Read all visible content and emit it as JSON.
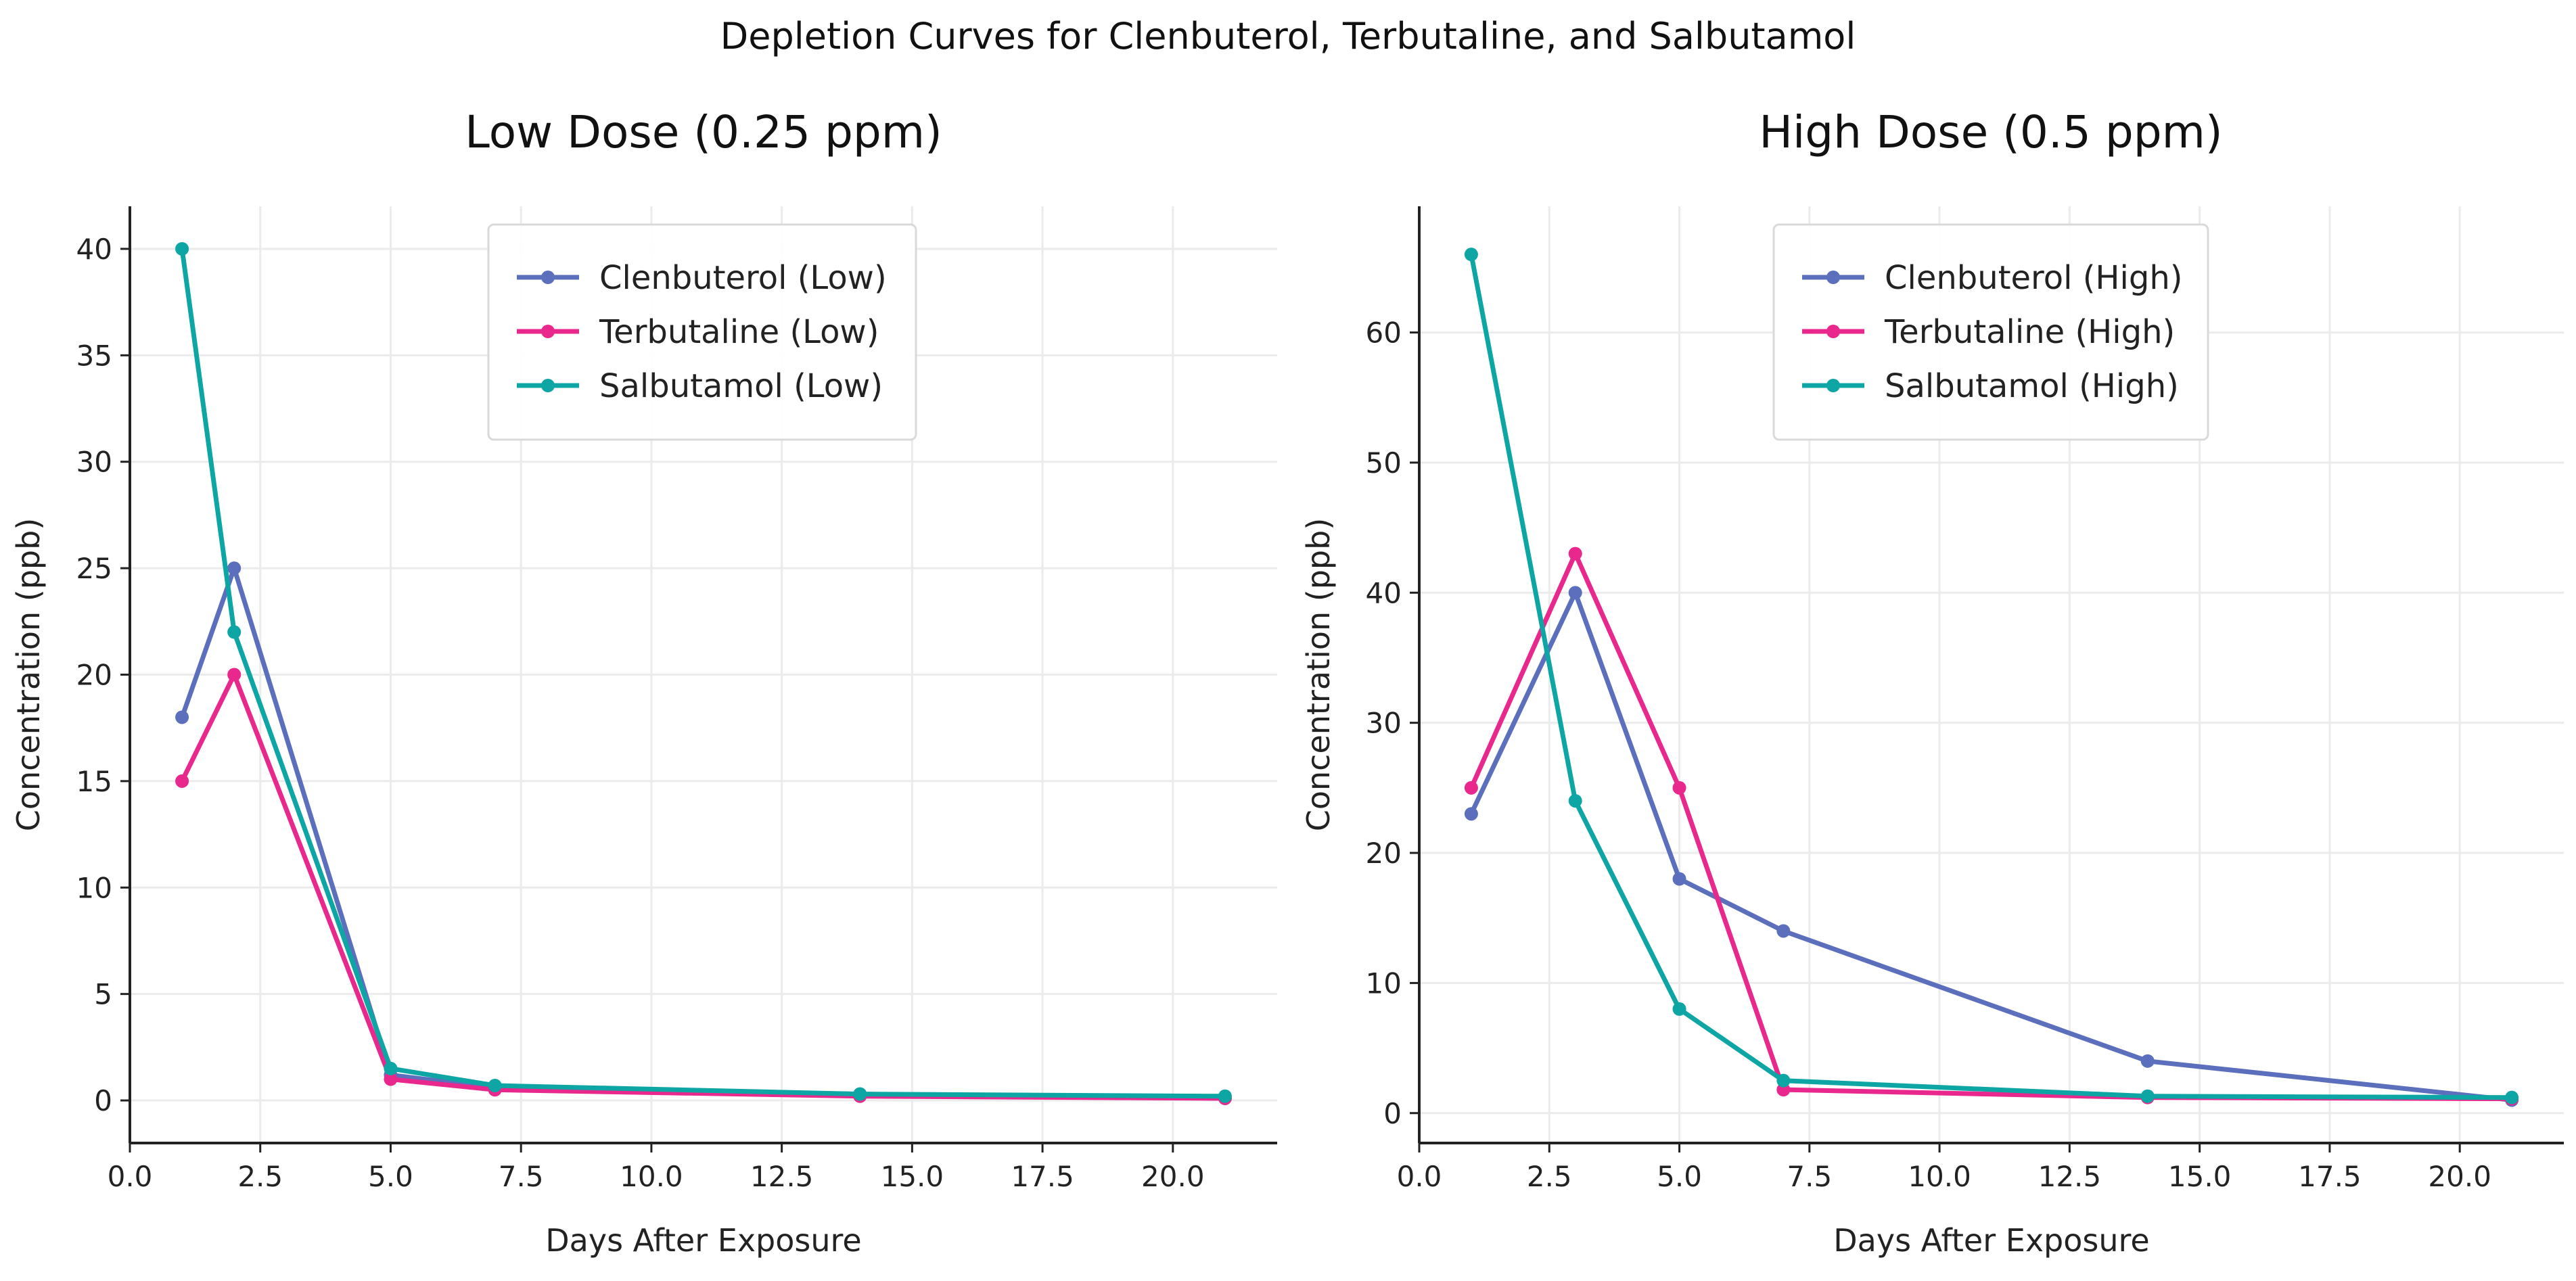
{
  "figure": {
    "title": "Depletion Curves for Clenbuterol, Terbutaline, and Salbutamol"
  },
  "chart_data": [
    {
      "type": "line",
      "title": "Low Dose (0.25 ppm)",
      "xlabel": "Days After Exposure",
      "ylabel": "Concentration (ppb)",
      "xlim": [
        0,
        22
      ],
      "ylim": [
        -2,
        42
      ],
      "xticks": [
        0.0,
        2.5,
        5.0,
        7.5,
        10.0,
        12.5,
        15.0,
        17.5,
        20.0
      ],
      "yticks": [
        0,
        5,
        10,
        15,
        20,
        25,
        30,
        35,
        40
      ],
      "xtick_labels": [
        "0.0",
        "2.5",
        "5.0",
        "7.5",
        "10.0",
        "12.5",
        "15.0",
        "17.5",
        "20.0"
      ],
      "ytick_labels": [
        "0",
        "5",
        "10",
        "15",
        "20",
        "25",
        "30",
        "35",
        "40"
      ],
      "grid": true,
      "legend_position": "top-center",
      "x": [
        1,
        2,
        5,
        7,
        14,
        21
      ],
      "series": [
        {
          "name": "Clenbuterol (Low)",
          "color": "#5b6fbd",
          "values": [
            18,
            25,
            1.2,
            0.6,
            0.3,
            0.1
          ]
        },
        {
          "name": "Terbutaline (Low)",
          "color": "#e8288c",
          "values": [
            15,
            20,
            1.0,
            0.5,
            0.2,
            0.1
          ]
        },
        {
          "name": "Salbutamol (Low)",
          "color": "#0ea5a5",
          "values": [
            40,
            22,
            1.5,
            0.7,
            0.3,
            0.2
          ]
        }
      ]
    },
    {
      "type": "line",
      "title": "High Dose (0.5 ppm)",
      "xlabel": "Days After Exposure",
      "ylabel": "Concentration (ppb)",
      "xlim": [
        0,
        22
      ],
      "ylim": [
        -2.3,
        69.7
      ],
      "xticks": [
        0.0,
        2.5,
        5.0,
        7.5,
        10.0,
        12.5,
        15.0,
        17.5,
        20.0
      ],
      "yticks": [
        0,
        10,
        20,
        30,
        40,
        50,
        60
      ],
      "xtick_labels": [
        "0.0",
        "2.5",
        "5.0",
        "7.5",
        "10.0",
        "12.5",
        "15.0",
        "17.5",
        "20.0"
      ],
      "ytick_labels": [
        "0",
        "10",
        "20",
        "30",
        "40",
        "50",
        "60"
      ],
      "grid": true,
      "legend_position": "top-center",
      "x": [
        1,
        3,
        5,
        7,
        14,
        21
      ],
      "series": [
        {
          "name": "Clenbuterol (High)",
          "color": "#5b6fbd",
          "values": [
            23,
            40,
            18,
            14,
            4,
            1
          ]
        },
        {
          "name": "Terbutaline (High)",
          "color": "#e8288c",
          "values": [
            25,
            43,
            25,
            1.8,
            1.2,
            1.1
          ]
        },
        {
          "name": "Salbutamol (High)",
          "color": "#0ea5a5",
          "values": [
            66,
            24,
            8,
            2.5,
            1.3,
            1.2
          ]
        }
      ]
    }
  ]
}
